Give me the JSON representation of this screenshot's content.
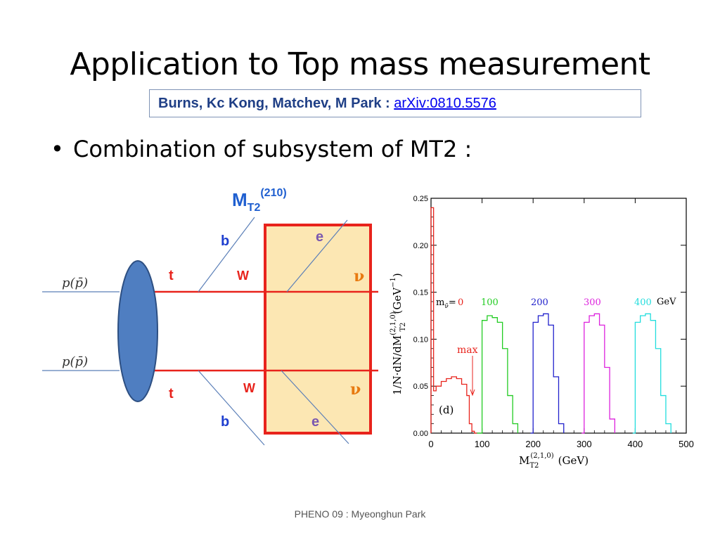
{
  "slide": {
    "title": "Application to Top mass measurement",
    "citation": {
      "authors": "Burns, Kc Kong, Matchev, M Park : ",
      "link_text": "arXiv:0810.5576"
    },
    "bullet": "Combination of subsystem of MT2 :",
    "footer": "PHENO 09  : Myeonghun Park"
  },
  "diagram": {
    "mt2_main": "M",
    "mt2_sub": "T2",
    "mt2_sup": "(210)",
    "incoming_top": "p(p̄)",
    "incoming_bottom": "p(p̄)",
    "top_label_1": "t",
    "top_label_2": "t",
    "b_label_1": "b",
    "b_label_2": "b",
    "w_label_1": "W",
    "w_label_2": "W",
    "e_label_1": "e",
    "e_label_2": "e",
    "nu_label_1": "ν",
    "nu_label_2": "ν",
    "colors": {
      "red": "#e8231c",
      "blue": "#1f3fcf",
      "purple": "#7a58b0",
      "blob": "#4f7ec1",
      "box_fill": "#fce7b3"
    }
  },
  "chart_data": {
    "type": "line",
    "xlabel_main": "M",
    "xlabel_sub": "T2",
    "xlabel_sup": "(2,1,0)",
    "xlabel_unit": "(GeV)",
    "ylabel_text": "1/N·dN/dM",
    "ylabel_sup": "(2,1,0)",
    "ylabel_sub": "T2",
    "ylabel_unit": "(GeV",
    "ylabel_unit_exp": "−1",
    "ylabel_unit_close": ")",
    "xlim": [
      0,
      500
    ],
    "ylim": [
      0,
      0.25
    ],
    "x_ticks": [
      "0",
      "100",
      "200",
      "300",
      "400",
      "500"
    ],
    "y_ticks": [
      "0.00",
      "0.05",
      "0.10",
      "0.15",
      "0.20",
      "0.25"
    ],
    "legend_prefix": "m",
    "legend_prefix_sub": "ν̃",
    "legend_eq": "=",
    "legend_unit": "GeV",
    "panel_label": "(d)",
    "annotation": "max",
    "annotation_color": "#e8231c",
    "series": [
      {
        "name": "0",
        "color": "#e8231c",
        "x": [
          0,
          5,
          10,
          20,
          30,
          40,
          50,
          60,
          70,
          75,
          80,
          85,
          90
        ],
        "y": [
          0.24,
          0.045,
          0.05,
          0.055,
          0.058,
          0.06,
          0.058,
          0.052,
          0.04,
          0.01,
          0.002,
          0.0,
          0.0
        ]
      },
      {
        "name": "100",
        "color": "#22cc22",
        "x": [
          90,
          100,
          110,
          120,
          130,
          140,
          150,
          160,
          170
        ],
        "y": [
          0.0,
          0.12,
          0.125,
          0.123,
          0.118,
          0.09,
          0.04,
          0.01,
          0.0
        ]
      },
      {
        "name": "200",
        "color": "#2222cc",
        "x": [
          195,
          200,
          210,
          220,
          230,
          240,
          250,
          260
        ],
        "y": [
          0.0,
          0.118,
          0.125,
          0.127,
          0.115,
          0.06,
          0.01,
          0.0
        ]
      },
      {
        "name": "300",
        "color": "#dd22dd",
        "x": [
          295,
          300,
          310,
          320,
          330,
          340,
          350,
          360
        ],
        "y": [
          0.0,
          0.118,
          0.125,
          0.127,
          0.115,
          0.07,
          0.015,
          0.0
        ]
      },
      {
        "name": "400",
        "color": "#22dddd",
        "x": [
          395,
          400,
          410,
          420,
          430,
          440,
          450,
          460,
          470
        ],
        "y": [
          0.0,
          0.118,
          0.125,
          0.127,
          0.12,
          0.09,
          0.04,
          0.01,
          0.0
        ]
      }
    ]
  }
}
